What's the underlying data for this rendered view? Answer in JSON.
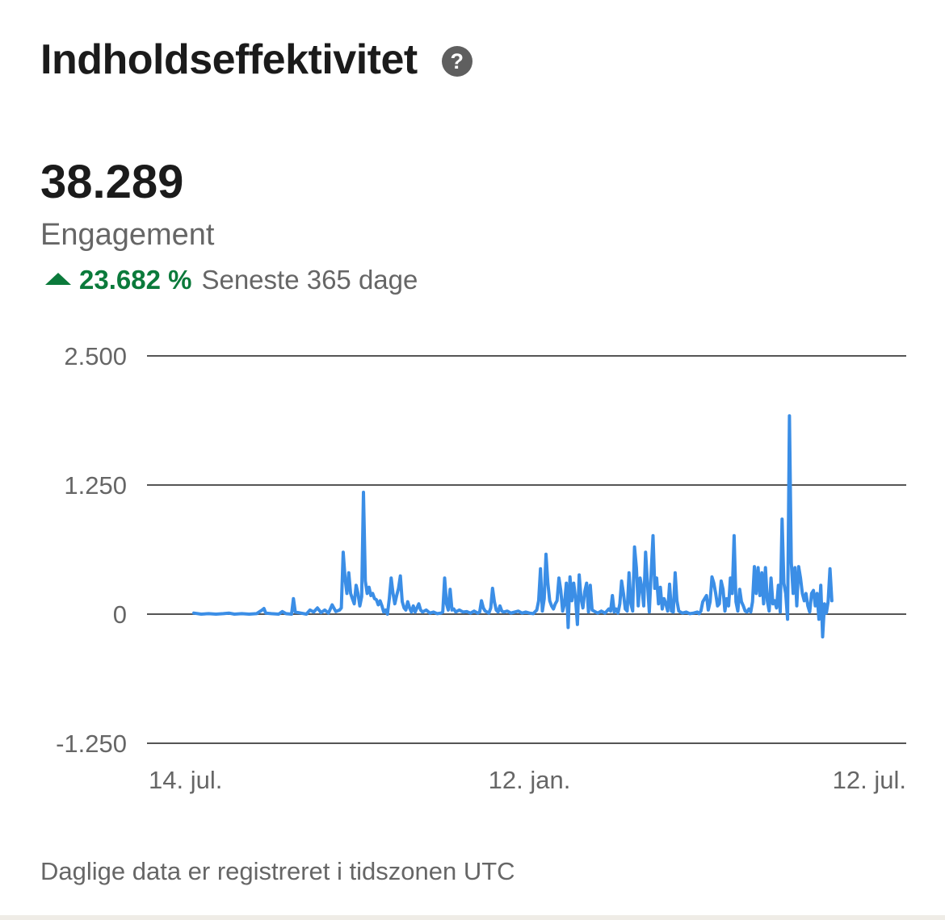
{
  "header": {
    "title": "Indholdseffektivitet",
    "help_icon": "question-mark-circle-icon"
  },
  "metric": {
    "value": "38.289",
    "label": "Engagement",
    "change": "23.682 %",
    "change_direction": "up",
    "period": "Seneste 365 dage"
  },
  "colors": {
    "line": "#3b8ee6",
    "positive": "#0b7a3b",
    "grid": "#555555",
    "text": "#666666"
  },
  "chart_data": {
    "type": "line",
    "x_start": "2023-07-14",
    "x_end": "2024-07-12",
    "xticks": [
      {
        "label": "14. jul.",
        "day": 0
      },
      {
        "label": "12. jan.",
        "day": 182
      },
      {
        "label": "12. jul.",
        "day": 364
      }
    ],
    "ylim": [
      -1250,
      2500
    ],
    "yticks": [
      {
        "label": "2.500",
        "value": 2500
      },
      {
        "label": "1.250",
        "value": 1250
      },
      {
        "label": "0",
        "value": 0
      },
      {
        "label": "-1.250",
        "value": -1250
      }
    ],
    "grid": true,
    "series": [
      {
        "points": [
          [
            0,
            10
          ],
          [
            4,
            0
          ],
          [
            8,
            5
          ],
          [
            12,
            0
          ],
          [
            16,
            5
          ],
          [
            19,
            10
          ],
          [
            22,
            0
          ],
          [
            26,
            5
          ],
          [
            30,
            0
          ],
          [
            34,
            5
          ],
          [
            37,
            40
          ],
          [
            38,
            55
          ],
          [
            39,
            10
          ],
          [
            42,
            5
          ],
          [
            46,
            0
          ],
          [
            48,
            25
          ],
          [
            50,
            5
          ],
          [
            53,
            0
          ],
          [
            54,
            150
          ],
          [
            55,
            20
          ],
          [
            58,
            10
          ],
          [
            61,
            0
          ],
          [
            63,
            40
          ],
          [
            65,
            20
          ],
          [
            67,
            60
          ],
          [
            69,
            15
          ],
          [
            71,
            40
          ],
          [
            73,
            10
          ],
          [
            75,
            90
          ],
          [
            77,
            25
          ],
          [
            79,
            40
          ],
          [
            80,
            60
          ],
          [
            81,
            600
          ],
          [
            82,
            350
          ],
          [
            83,
            200
          ],
          [
            84,
            400
          ],
          [
            85,
            200
          ],
          [
            86,
            150
          ],
          [
            87,
            100
          ],
          [
            88,
            280
          ],
          [
            89,
            200
          ],
          [
            90,
            80
          ],
          [
            91,
            170
          ],
          [
            92,
            1180
          ],
          [
            93,
            320
          ],
          [
            94,
            200
          ],
          [
            95,
            260
          ],
          [
            96,
            180
          ],
          [
            97,
            200
          ],
          [
            98,
            150
          ],
          [
            99,
            140
          ],
          [
            100,
            90
          ],
          [
            101,
            130
          ],
          [
            102,
            80
          ],
          [
            103,
            20
          ],
          [
            104,
            40
          ],
          [
            105,
            0
          ],
          [
            106,
            150
          ],
          [
            107,
            350
          ],
          [
            108,
            200
          ],
          [
            109,
            100
          ],
          [
            110,
            180
          ],
          [
            111,
            250
          ],
          [
            112,
            370
          ],
          [
            113,
            120
          ],
          [
            114,
            60
          ],
          [
            115,
            40
          ],
          [
            116,
            120
          ],
          [
            117,
            60
          ],
          [
            118,
            20
          ],
          [
            119,
            80
          ],
          [
            120,
            20
          ],
          [
            121,
            60
          ],
          [
            122,
            100
          ],
          [
            123,
            40
          ],
          [
            124,
            20
          ],
          [
            126,
            40
          ],
          [
            128,
            10
          ],
          [
            130,
            20
          ],
          [
            132,
            5
          ],
          [
            134,
            10
          ],
          [
            135,
            20
          ],
          [
            136,
            350
          ],
          [
            137,
            100
          ],
          [
            138,
            40
          ],
          [
            139,
            240
          ],
          [
            140,
            40
          ],
          [
            141,
            50
          ],
          [
            142,
            20
          ],
          [
            144,
            40
          ],
          [
            146,
            20
          ],
          [
            148,
            25
          ],
          [
            150,
            10
          ],
          [
            152,
            30
          ],
          [
            154,
            10
          ],
          [
            155,
            20
          ],
          [
            156,
            130
          ],
          [
            157,
            60
          ],
          [
            158,
            30
          ],
          [
            159,
            20
          ],
          [
            160,
            10
          ],
          [
            161,
            60
          ],
          [
            162,
            250
          ],
          [
            163,
            120
          ],
          [
            164,
            40
          ],
          [
            165,
            20
          ],
          [
            166,
            80
          ],
          [
            167,
            30
          ],
          [
            168,
            20
          ],
          [
            170,
            30
          ],
          [
            172,
            10
          ],
          [
            174,
            20
          ],
          [
            176,
            30
          ],
          [
            178,
            10
          ],
          [
            180,
            20
          ],
          [
            182,
            10
          ],
          [
            184,
            5
          ],
          [
            186,
            40
          ],
          [
            187,
            130
          ],
          [
            188,
            440
          ],
          [
            189,
            30
          ],
          [
            190,
            150
          ],
          [
            191,
            580
          ],
          [
            192,
            300
          ],
          [
            193,
            130
          ],
          [
            194,
            80
          ],
          [
            195,
            50
          ],
          [
            196,
            100
          ],
          [
            197,
            130
          ],
          [
            198,
            350
          ],
          [
            199,
            230
          ],
          [
            200,
            30
          ],
          [
            201,
            100
          ],
          [
            202,
            300
          ],
          [
            203,
            -130
          ],
          [
            204,
            360
          ],
          [
            205,
            130
          ],
          [
            206,
            300
          ],
          [
            207,
            150
          ],
          [
            208,
            -100
          ],
          [
            209,
            380
          ],
          [
            210,
            150
          ],
          [
            211,
            60
          ],
          [
            212,
            220
          ],
          [
            213,
            300
          ],
          [
            214,
            20
          ],
          [
            215,
            280
          ],
          [
            216,
            40
          ],
          [
            217,
            30
          ],
          [
            219,
            10
          ],
          [
            221,
            30
          ],
          [
            223,
            10
          ],
          [
            225,
            50
          ],
          [
            226,
            30
          ],
          [
            227,
            180
          ],
          [
            228,
            20
          ],
          [
            229,
            50
          ],
          [
            230,
            10
          ],
          [
            231,
            100
          ],
          [
            232,
            320
          ],
          [
            233,
            200
          ],
          [
            234,
            50
          ],
          [
            235,
            30
          ],
          [
            236,
            400
          ],
          [
            237,
            100
          ],
          [
            238,
            30
          ],
          [
            239,
            650
          ],
          [
            240,
            450
          ],
          [
            241,
            80
          ],
          [
            242,
            350
          ],
          [
            243,
            250
          ],
          [
            244,
            80
          ],
          [
            245,
            600
          ],
          [
            246,
            300
          ],
          [
            247,
            20
          ],
          [
            248,
            400
          ],
          [
            249,
            760
          ],
          [
            250,
            250
          ],
          [
            251,
            350
          ],
          [
            252,
            100
          ],
          [
            253,
            260
          ],
          [
            254,
            50
          ],
          [
            255,
            150
          ],
          [
            256,
            100
          ],
          [
            257,
            30
          ],
          [
            258,
            290
          ],
          [
            259,
            30
          ],
          [
            260,
            20
          ],
          [
            261,
            400
          ],
          [
            262,
            130
          ],
          [
            263,
            30
          ],
          [
            265,
            10
          ],
          [
            267,
            20
          ],
          [
            269,
            5
          ],
          [
            271,
            10
          ],
          [
            273,
            20
          ],
          [
            274,
            5
          ],
          [
            275,
            30
          ],
          [
            276,
            120
          ],
          [
            277,
            150
          ],
          [
            278,
            180
          ],
          [
            279,
            40
          ],
          [
            280,
            120
          ],
          [
            281,
            360
          ],
          [
            282,
            300
          ],
          [
            283,
            200
          ],
          [
            284,
            80
          ],
          [
            285,
            100
          ],
          [
            286,
            320
          ],
          [
            287,
            240
          ],
          [
            288,
            30
          ],
          [
            289,
            150
          ],
          [
            290,
            80
          ],
          [
            291,
            350
          ],
          [
            292,
            200
          ],
          [
            293,
            760
          ],
          [
            294,
            120
          ],
          [
            295,
            30
          ],
          [
            296,
            240
          ],
          [
            297,
            120
          ],
          [
            298,
            80
          ],
          [
            299,
            30
          ],
          [
            300,
            20
          ],
          [
            301,
            50
          ],
          [
            302,
            20
          ],
          [
            303,
            120
          ],
          [
            304,
            460
          ],
          [
            305,
            200
          ],
          [
            306,
            450
          ],
          [
            307,
            180
          ],
          [
            308,
            400
          ],
          [
            309,
            100
          ],
          [
            310,
            450
          ],
          [
            311,
            130
          ],
          [
            312,
            30
          ],
          [
            313,
            350
          ],
          [
            314,
            100
          ],
          [
            315,
            130
          ],
          [
            316,
            60
          ],
          [
            317,
            280
          ],
          [
            318,
            20
          ],
          [
            319,
            920
          ],
          [
            320,
            300
          ],
          [
            321,
            200
          ],
          [
            322,
            -50
          ],
          [
            323,
            1920
          ],
          [
            324,
            500
          ],
          [
            325,
            200
          ],
          [
            326,
            450
          ],
          [
            327,
            80
          ],
          [
            328,
            460
          ],
          [
            329,
            350
          ],
          [
            330,
            200
          ],
          [
            331,
            130
          ],
          [
            332,
            200
          ],
          [
            333,
            80
          ],
          [
            334,
            20
          ],
          [
            335,
            200
          ],
          [
            336,
            230
          ],
          [
            337,
            80
          ],
          [
            338,
            200
          ],
          [
            339,
            -50
          ],
          [
            340,
            280
          ],
          [
            341,
            -220
          ],
          [
            342,
            100
          ],
          [
            343,
            10
          ],
          [
            344,
            120
          ],
          [
            345,
            440
          ],
          [
            346,
            130
          ]
        ]
      }
    ]
  },
  "footnote": "Daglige data er registreret i tidszonen UTC"
}
